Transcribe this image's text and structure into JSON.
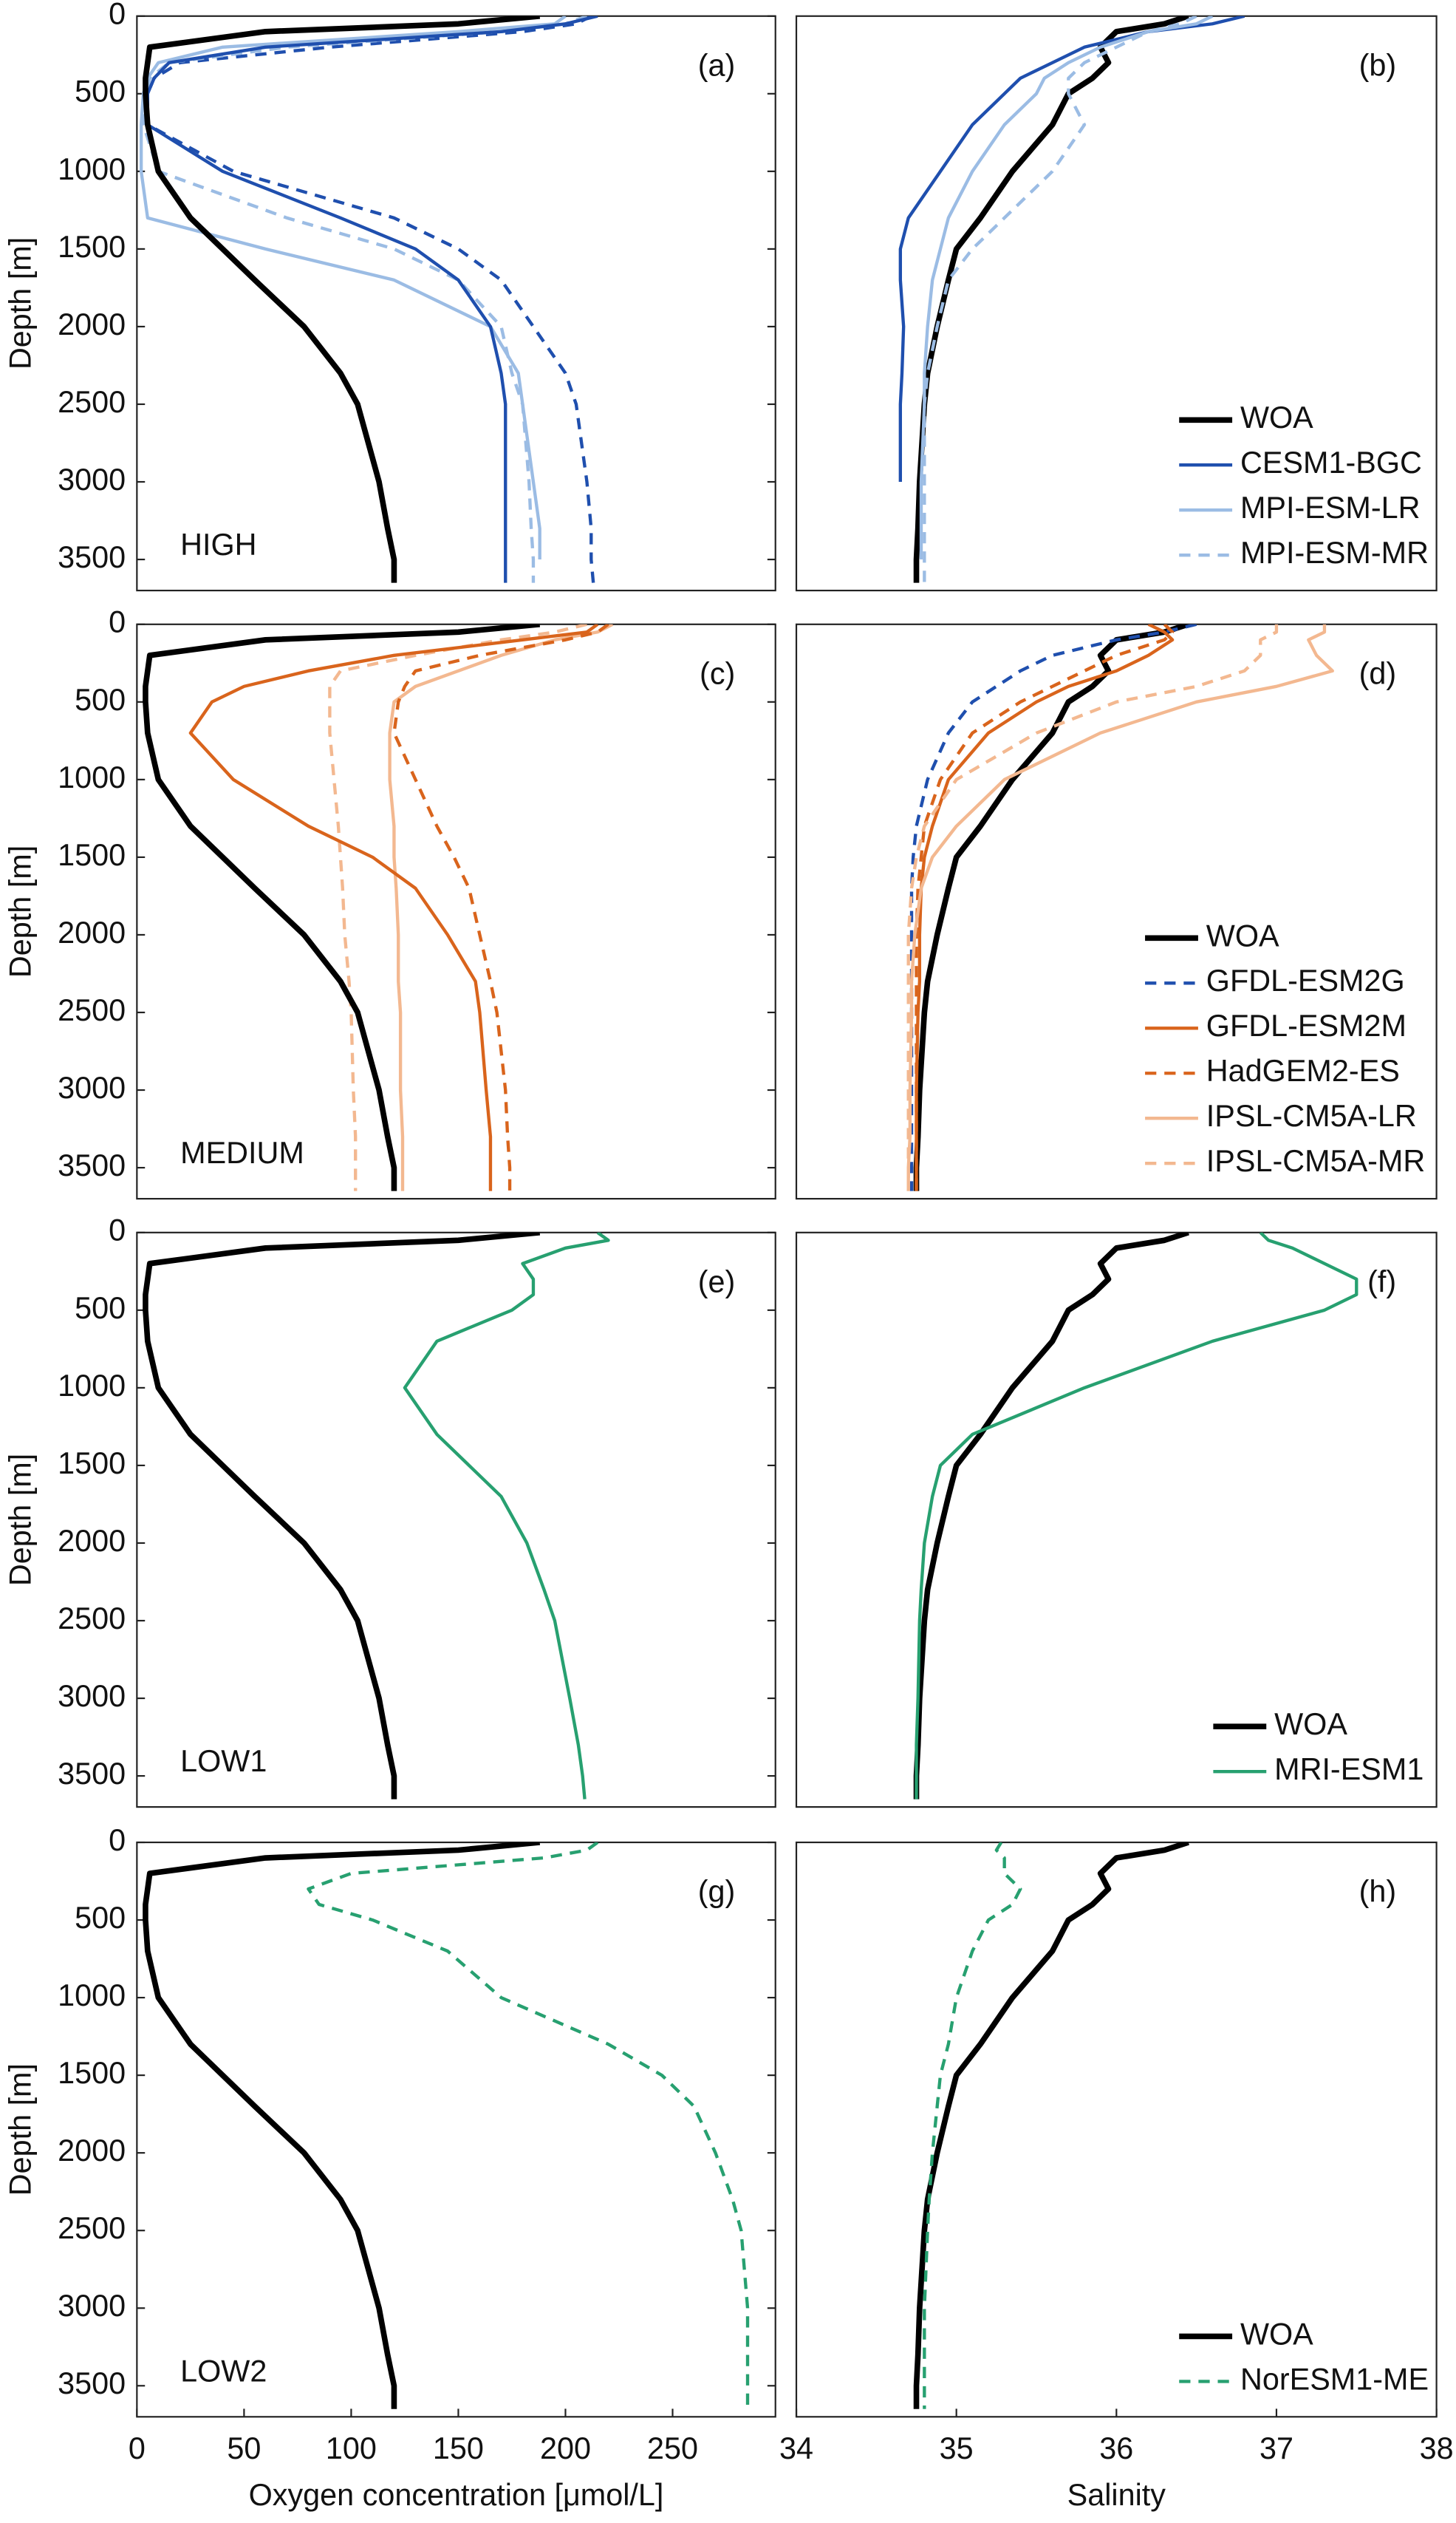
{
  "chart_data": [
    {
      "type": "line",
      "panel_label": "(a)",
      "region_label": "HIGH",
      "ylabel": "Depth [m]",
      "y": [
        0,
        50,
        100,
        200,
        300,
        400,
        500,
        700,
        1000,
        1300,
        1500,
        1700,
        2000,
        2300,
        2500,
        3000,
        3300,
        3500,
        3650
      ],
      "xlim": [
        0,
        298
      ],
      "ylim": [
        3700,
        0
      ],
      "yticks": [
        0,
        500,
        1000,
        1500,
        2000,
        2500,
        3000,
        3500
      ],
      "series": [
        {
          "color": "#1f4fae",
          "dashed": true,
          "width": 2,
          "values": [
            212,
            205,
            180,
            90,
            20,
            8,
            5,
            5,
            45,
            120,
            150,
            170,
            185,
            200,
            205,
            210,
            212,
            212,
            213
          ]
        },
        {
          "color": "#9bbce4",
          "dashed": true,
          "width": 2,
          "values": [
            210,
            200,
            170,
            70,
            15,
            6,
            4,
            3,
            10,
            70,
            120,
            150,
            170,
            175,
            180,
            183,
            184,
            185,
            185
          ]
        },
        {
          "color": "#9bbce4",
          "dashed": false,
          "width": 2,
          "values": [
            200,
            195,
            150,
            40,
            10,
            5,
            3,
            2,
            2,
            5,
            60,
            120,
            165,
            178,
            180,
            185,
            188,
            188,
            null
          ]
        },
        {
          "color": "#1f4fae",
          "dashed": false,
          "width": 2,
          "values": [
            215,
            200,
            170,
            60,
            15,
            8,
            5,
            5,
            40,
            95,
            130,
            150,
            165,
            170,
            172,
            172,
            172,
            172,
            172
          ]
        },
        {
          "color": "#000000",
          "dashed": false,
          "width": 3.5,
          "values": [
            188,
            150,
            60,
            6,
            5,
            4,
            4,
            5,
            10,
            25,
            40,
            55,
            78,
            95,
            103,
            113,
            117,
            120,
            120
          ]
        }
      ]
    },
    {
      "type": "line",
      "panel_label": "(b)",
      "legend_loc": "lower right",
      "y": [
        0,
        50,
        100,
        200,
        300,
        400,
        500,
        700,
        1000,
        1300,
        1500,
        1700,
        2000,
        2300,
        2500,
        3000,
        3300,
        3500,
        3650
      ],
      "xlim": [
        34,
        38
      ],
      "ylim": [
        3700,
        0
      ],
      "series": [
        {
          "name": "WOA",
          "color": "#000000",
          "dashed": false,
          "width": 3.5,
          "values": [
            36.45,
            36.3,
            36.0,
            35.9,
            35.95,
            35.85,
            35.7,
            35.6,
            35.35,
            35.15,
            35.0,
            34.95,
            34.88,
            34.82,
            34.8,
            34.77,
            34.76,
            34.75,
            34.75
          ]
        },
        {
          "name": "CESM1-BGC",
          "color": "#1f4fae",
          "dashed": false,
          "width": 2,
          "values": [
            36.8,
            36.6,
            36.2,
            35.8,
            35.6,
            35.4,
            35.3,
            35.1,
            34.9,
            34.7,
            34.65,
            34.65,
            34.67,
            34.66,
            34.65,
            34.65,
            null,
            null,
            null
          ]
        },
        {
          "name": "MPI-ESM-LR",
          "color": "#9bbce4",
          "dashed": false,
          "width": 2,
          "values": [
            36.6,
            36.5,
            36.2,
            35.9,
            35.7,
            35.55,
            35.5,
            35.3,
            35.1,
            34.95,
            34.9,
            34.85,
            34.82,
            34.8,
            34.8,
            34.78,
            34.78,
            34.78,
            null
          ]
        },
        {
          "name": "MPI-ESM-MR",
          "color": "#9bbce4",
          "dashed": true,
          "width": 2,
          "values": [
            36.5,
            36.4,
            36.2,
            36.0,
            35.8,
            35.7,
            35.7,
            35.8,
            35.6,
            35.3,
            35.1,
            34.95,
            34.88,
            34.82,
            34.8,
            34.8,
            34.8,
            34.8,
            34.8
          ]
        }
      ]
    },
    {
      "type": "line",
      "panel_label": "(c)",
      "region_label": "MEDIUM",
      "ylabel": "Depth [m]",
      "y": [
        0,
        50,
        100,
        200,
        300,
        400,
        500,
        700,
        1000,
        1300,
        1500,
        1700,
        2000,
        2300,
        2500,
        3000,
        3300,
        3500,
        3650
      ],
      "xlim": [
        0,
        298
      ],
      "ylim": [
        3700,
        0
      ],
      "yticks": [
        0,
        500,
        1000,
        1500,
        2000,
        2500,
        3000,
        3500
      ],
      "series": [
        {
          "color": "#f3b890",
          "dashed": true,
          "width": 2,
          "values": [
            210,
            195,
            170,
            130,
            95,
            90,
            90,
            90,
            92,
            94,
            95,
            96,
            97,
            99,
            100,
            101,
            102,
            102,
            102
          ]
        },
        {
          "color": "#f3b890",
          "dashed": false,
          "width": 2,
          "values": [
            222,
            215,
            195,
            170,
            150,
            130,
            120,
            118,
            118,
            120,
            120,
            121,
            122,
            122,
            123,
            123,
            124,
            124,
            124
          ]
        },
        {
          "color": "#d9641c",
          "dashed": true,
          "width": 2,
          "values": [
            220,
            215,
            200,
            160,
            130,
            125,
            122,
            120,
            130,
            140,
            148,
            155,
            160,
            165,
            168,
            172,
            173,
            174,
            174
          ]
        },
        {
          "color": "#d9641c",
          "dashed": false,
          "width": 2,
          "values": [
            215,
            210,
            180,
            120,
            80,
            50,
            35,
            25,
            45,
            80,
            110,
            130,
            145,
            158,
            160,
            163,
            165,
            165,
            165
          ]
        },
        {
          "color": "#000000",
          "dashed": false,
          "width": 3.5,
          "values": [
            188,
            150,
            60,
            6,
            5,
            4,
            4,
            5,
            10,
            25,
            40,
            55,
            78,
            95,
            103,
            113,
            117,
            120,
            120
          ]
        }
      ]
    },
    {
      "type": "line",
      "panel_label": "(d)",
      "legend_loc": "lower right",
      "y": [
        0,
        50,
        100,
        200,
        300,
        400,
        500,
        700,
        1000,
        1300,
        1500,
        1700,
        2000,
        2300,
        2500,
        3000,
        3300,
        3500,
        3650
      ],
      "xlim": [
        34,
        38
      ],
      "ylim": [
        3700,
        0
      ],
      "series": [
        {
          "name": "WOA",
          "color": "#000000",
          "dashed": false,
          "width": 3.5,
          "values": [
            36.45,
            36.3,
            36.0,
            35.9,
            35.95,
            35.85,
            35.7,
            35.6,
            35.35,
            35.15,
            35.0,
            34.95,
            34.88,
            34.82,
            34.8,
            34.77,
            34.76,
            34.75,
            34.75
          ]
        },
        {
          "name": "GFDL-ESM2G",
          "color": "#1f4fae",
          "dashed": true,
          "width": 2,
          "values": [
            36.5,
            36.3,
            36.0,
            35.6,
            35.4,
            35.25,
            35.1,
            34.95,
            34.82,
            34.75,
            34.73,
            34.72,
            34.72,
            34.72,
            34.72,
            34.72,
            34.72,
            34.72,
            34.72
          ]
        },
        {
          "name": "GFDL-ESM2M",
          "color": "#d9641c",
          "dashed": false,
          "width": 2,
          "values": [
            36.2,
            36.3,
            36.35,
            36.2,
            36.0,
            35.7,
            35.5,
            35.2,
            34.95,
            34.85,
            34.8,
            34.78,
            34.77,
            34.77,
            34.76,
            34.75,
            34.75,
            34.75,
            34.75
          ]
        },
        {
          "name": "HadGEM2-ES",
          "color": "#d9641c",
          "dashed": true,
          "width": 2,
          "values": [
            36.3,
            36.35,
            36.3,
            36.0,
            35.8,
            35.6,
            35.4,
            35.1,
            34.9,
            34.8,
            34.78,
            34.76,
            34.75,
            34.75,
            34.75,
            34.75,
            34.75,
            34.75,
            34.75
          ]
        },
        {
          "name": "IPSL-CM5A-LR",
          "color": "#f3b890",
          "dashed": false,
          "width": 2,
          "values": [
            37.3,
            37.3,
            37.2,
            37.25,
            37.35,
            37.0,
            36.5,
            35.9,
            35.3,
            35.0,
            34.85,
            34.78,
            34.74,
            34.72,
            34.72,
            34.71,
            34.71,
            34.7,
            34.7
          ]
        },
        {
          "name": "IPSL-CM5A-MR",
          "color": "#f3b890",
          "dashed": true,
          "width": 2,
          "values": [
            37.0,
            37.0,
            36.9,
            36.9,
            36.8,
            36.5,
            36.0,
            35.5,
            35.0,
            34.8,
            34.75,
            34.72,
            34.7,
            34.7,
            34.7,
            34.7,
            34.7,
            34.7,
            34.7
          ]
        }
      ]
    },
    {
      "type": "line",
      "panel_label": "(e)",
      "region_label": "LOW1",
      "ylabel": "Depth [m]",
      "y": [
        0,
        50,
        100,
        200,
        300,
        400,
        500,
        700,
        1000,
        1300,
        1500,
        1700,
        2000,
        2300,
        2500,
        3000,
        3300,
        3500,
        3650
      ],
      "xlim": [
        0,
        298
      ],
      "ylim": [
        3700,
        0
      ],
      "yticks": [
        0,
        500,
        1000,
        1500,
        2000,
        2500,
        3000,
        3500
      ],
      "series": [
        {
          "color": "#27a070",
          "dashed": false,
          "width": 2,
          "values": [
            215,
            220,
            200,
            180,
            185,
            185,
            175,
            140,
            125,
            140,
            155,
            170,
            182,
            190,
            195,
            202,
            206,
            208,
            209
          ]
        },
        {
          "color": "#000000",
          "dashed": false,
          "width": 3.5,
          "values": [
            188,
            150,
            60,
            6,
            5,
            4,
            4,
            5,
            10,
            25,
            40,
            55,
            78,
            95,
            103,
            113,
            117,
            120,
            120
          ]
        }
      ]
    },
    {
      "type": "line",
      "panel_label": "(f)",
      "legend_loc": "lower right",
      "y": [
        0,
        50,
        100,
        200,
        300,
        400,
        500,
        700,
        1000,
        1300,
        1500,
        1700,
        2000,
        2300,
        2500,
        3000,
        3300,
        3500,
        3650
      ],
      "xlim": [
        34,
        38
      ],
      "ylim": [
        3700,
        0
      ],
      "series": [
        {
          "name": "WOA",
          "color": "#000000",
          "dashed": false,
          "width": 3.5,
          "values": [
            36.45,
            36.3,
            36.0,
            35.9,
            35.95,
            35.85,
            35.7,
            35.6,
            35.35,
            35.15,
            35.0,
            34.95,
            34.88,
            34.82,
            34.8,
            34.77,
            34.76,
            34.75,
            34.75
          ]
        },
        {
          "name": "MRI-ESM1",
          "color": "#27a070",
          "dashed": false,
          "width": 2,
          "values": [
            36.9,
            36.95,
            37.1,
            37.3,
            37.5,
            37.5,
            37.3,
            36.6,
            35.8,
            35.1,
            34.9,
            34.85,
            34.8,
            34.78,
            34.77,
            34.76,
            34.75,
            34.75,
            34.75
          ]
        }
      ]
    },
    {
      "type": "line",
      "panel_label": "(g)",
      "region_label": "LOW2",
      "ylabel": "Depth [m]",
      "xlabel": "Oxygen concentration [μmol/L]",
      "y": [
        0,
        50,
        100,
        200,
        300,
        400,
        500,
        700,
        1000,
        1300,
        1500,
        1700,
        2000,
        2300,
        2500,
        3000,
        3300,
        3500,
        3650
      ],
      "xlim": [
        0,
        298
      ],
      "ylim": [
        3700,
        0
      ],
      "xticks": [
        0,
        50,
        100,
        150,
        200,
        250
      ],
      "yticks": [
        0,
        500,
        1000,
        1500,
        2000,
        2500,
        3000,
        3500
      ],
      "series": [
        {
          "color": "#27a070",
          "dashed": true,
          "width": 2,
          "values": [
            215,
            210,
            190,
            100,
            80,
            85,
            110,
            145,
            170,
            220,
            245,
            260,
            270,
            278,
            282,
            285,
            285,
            285,
            285
          ]
        },
        {
          "color": "#000000",
          "dashed": false,
          "width": 3.5,
          "values": [
            188,
            150,
            60,
            6,
            5,
            4,
            4,
            5,
            10,
            25,
            40,
            55,
            78,
            95,
            103,
            113,
            117,
            120,
            120
          ]
        }
      ]
    },
    {
      "type": "line",
      "panel_label": "(h)",
      "legend_loc": "lower right",
      "xlabel": "Salinity",
      "y": [
        0,
        50,
        100,
        200,
        300,
        400,
        500,
        700,
        1000,
        1300,
        1500,
        1700,
        2000,
        2300,
        2500,
        3000,
        3300,
        3500,
        3650
      ],
      "xlim": [
        34,
        38
      ],
      "ylim": [
        3700,
        0
      ],
      "xticks": [
        34,
        35,
        36,
        37,
        38
      ],
      "series": [
        {
          "name": "WOA",
          "color": "#000000",
          "dashed": false,
          "width": 3.5,
          "values": [
            36.45,
            36.3,
            36.0,
            35.9,
            35.95,
            35.85,
            35.7,
            35.6,
            35.35,
            35.15,
            35.0,
            34.95,
            34.88,
            34.82,
            34.8,
            34.77,
            34.76,
            34.75,
            34.75
          ]
        },
        {
          "name": "NorESM1-ME",
          "color": "#27a070",
          "dashed": true,
          "width": 2,
          "values": [
            35.28,
            35.25,
            35.3,
            35.3,
            35.4,
            35.35,
            35.2,
            35.1,
            35.0,
            34.95,
            34.9,
            34.88,
            34.85,
            34.83,
            34.82,
            34.8,
            34.8,
            34.8,
            34.8
          ]
        }
      ]
    }
  ]
}
